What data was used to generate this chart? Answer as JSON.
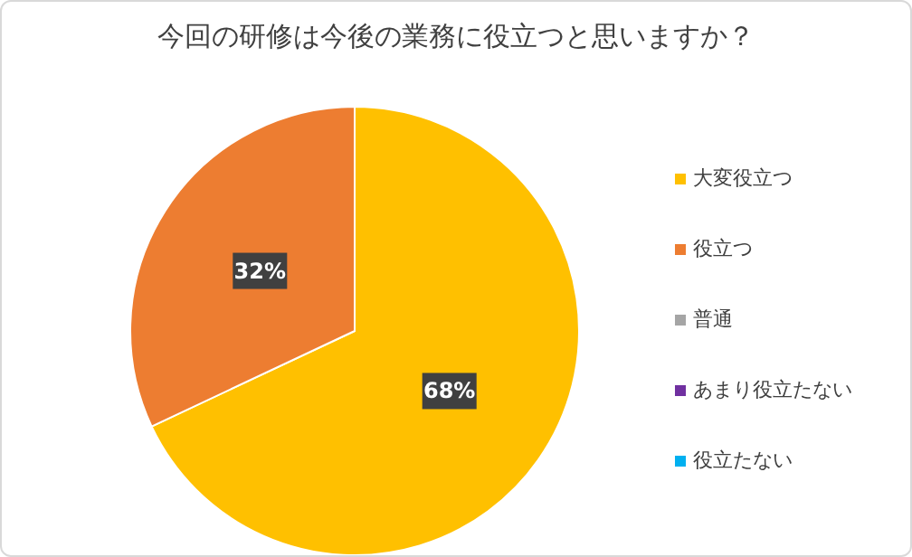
{
  "chart_data": {
    "type": "pie",
    "title": "今回の研修は今後の業務に役立つと思いますか？",
    "categories": [
      "大変役立つ",
      "役立つ",
      "普通",
      "あまり役立たない",
      "役立たない"
    ],
    "values": [
      68,
      32,
      0,
      0,
      0
    ],
    "colors": [
      "#ffc000",
      "#ed7d31",
      "#a5a5a5",
      "#7030a0",
      "#00b0f0"
    ],
    "value_labels": [
      "68%",
      "32%",
      null,
      null,
      null
    ],
    "legend": "right"
  }
}
